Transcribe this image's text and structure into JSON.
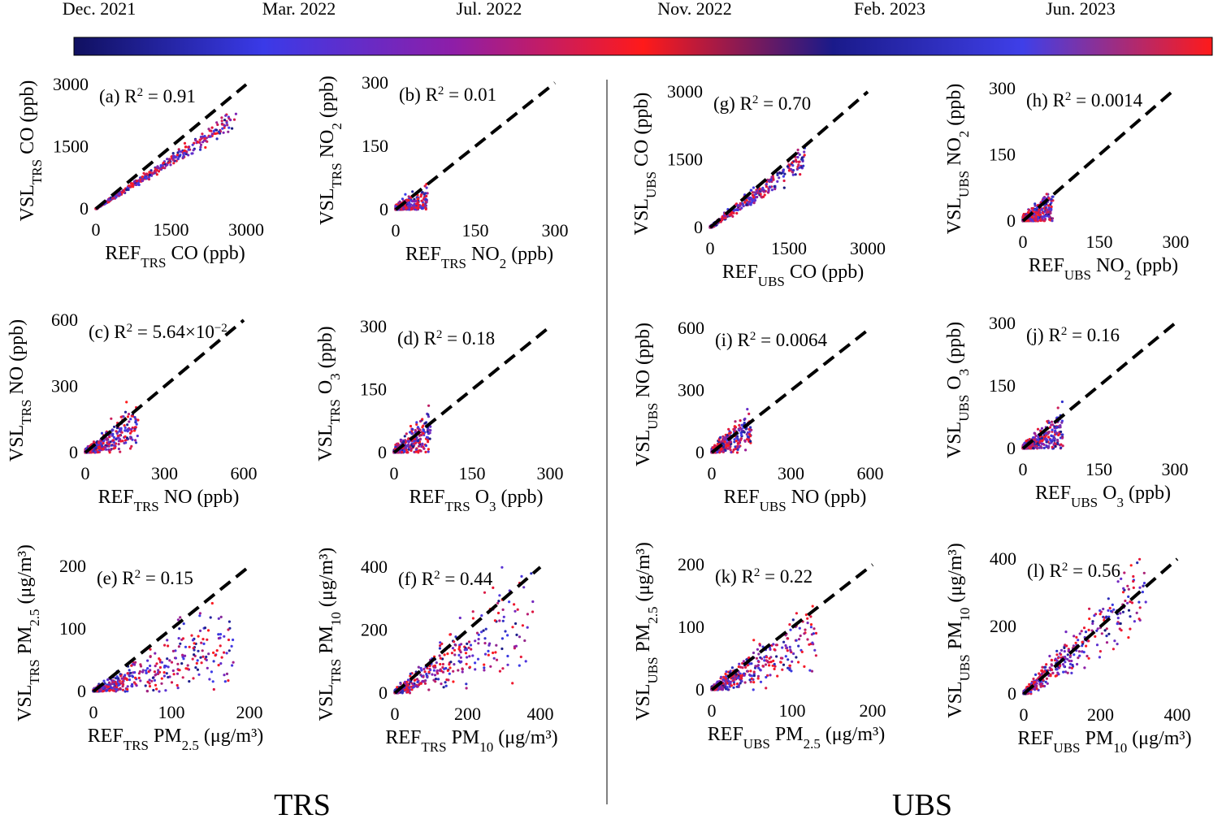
{
  "colorbar": {
    "labels": [
      "Dec. 2021",
      "Mar. 2022",
      "Jul. 2022",
      "Nov. 2022",
      "Feb. 2023",
      "Jun. 2023"
    ],
    "colors": [
      "#101060",
      "#3a3ae8",
      "#8e1ea8",
      "#ff1a1a",
      "#1a1a8a",
      "#3f3fe8",
      "#ff1a1a"
    ]
  },
  "groups": {
    "left": "TRS",
    "right": "UBS"
  },
  "chart_data": [
    {
      "type": "scatter",
      "panel": "a",
      "station": "TRS",
      "species": "CO",
      "units": "(ppb)",
      "annotation": {
        "prefix": "(a) R",
        "value": "= 0.91"
      },
      "xlim": [
        0,
        3000
      ],
      "ylim": [
        0,
        3000
      ],
      "xticks": [
        "0",
        "1500",
        "3000"
      ],
      "yticks": [
        "0",
        "1500",
        "3000"
      ],
      "trend": {
        "slope": 0.78,
        "spread": 0.06,
        "xmax": 2800
      },
      "reference_line": "1:1 dashed"
    },
    {
      "type": "scatter",
      "panel": "b",
      "station": "TRS",
      "species": "NO",
      "species_sub": "2",
      "units": "(ppb)",
      "annotation": {
        "prefix": "(b) R",
        "value": "= 0.01"
      },
      "xlim": [
        0,
        300
      ],
      "ylim": [
        0,
        300
      ],
      "xticks": [
        "0",
        "150",
        "300"
      ],
      "yticks": [
        "0",
        "150",
        "300"
      ],
      "trend": {
        "slope": 0.3,
        "spread": 0.45,
        "xmax": 60
      },
      "reference_line": "1:1 dashed"
    },
    {
      "type": "scatter",
      "panel": "c",
      "station": "TRS",
      "species": "NO",
      "units": "(ppb)",
      "annotation": {
        "prefix": "(c) R",
        "value": "= 5.64×10",
        "exp_extra": "−2"
      },
      "xlim": [
        0,
        600
      ],
      "ylim": [
        0,
        600
      ],
      "xticks": [
        "0",
        "300",
        "600"
      ],
      "yticks": [
        "0",
        "300",
        "600"
      ],
      "trend": {
        "slope": 0.6,
        "spread": 0.35,
        "xmax": 200
      },
      "reference_line": "1:1 dashed"
    },
    {
      "type": "scatter",
      "panel": "d",
      "station": "TRS",
      "species": "O",
      "species_sub": "3",
      "units": "(ppb)",
      "annotation": {
        "prefix": "(d) R",
        "value": "= 0.18"
      },
      "xlim": [
        0,
        300
      ],
      "ylim": [
        0,
        300
      ],
      "xticks": [
        "0",
        "150",
        "300"
      ],
      "yticks": [
        "0",
        "150",
        "300"
      ],
      "trend": {
        "slope": 0.8,
        "spread": 0.45,
        "xmax": 70
      },
      "reference_line": "1:1 dashed"
    },
    {
      "type": "scatter",
      "panel": "e",
      "station": "TRS",
      "species": "PM",
      "species_sub": "2.5",
      "units": "(μg/m³)",
      "annotation": {
        "prefix": "(e) R",
        "value": "= 0.15"
      },
      "xlim": [
        0,
        200
      ],
      "ylim": [
        0,
        200
      ],
      "xticks": [
        "0",
        "100",
        "200"
      ],
      "yticks": [
        "0",
        "100",
        "200"
      ],
      "trend": {
        "slope": 0.45,
        "spread": 0.3,
        "xmax": 180
      },
      "reference_line": "1:1 dashed"
    },
    {
      "type": "scatter",
      "panel": "f",
      "station": "TRS",
      "species": "PM",
      "species_sub": "10",
      "units": "(μg/m³)",
      "annotation": {
        "prefix": "(f) R",
        "value": "= 0.44"
      },
      "xlim": [
        0,
        400
      ],
      "ylim": [
        0,
        400
      ],
      "xticks": [
        "0",
        "200",
        "400"
      ],
      "yticks": [
        "0",
        "200",
        "400"
      ],
      "trend": {
        "slope": 0.7,
        "spread": 0.35,
        "xmax": 380
      },
      "reference_line": "1:1 dashed"
    },
    {
      "type": "scatter",
      "panel": "g",
      "station": "UBS",
      "species": "CO",
      "units": "(ppb)",
      "annotation": {
        "prefix": "(g) R",
        "value": "= 0.70"
      },
      "xlim": [
        0,
        3000
      ],
      "ylim": [
        0,
        3000
      ],
      "xticks": [
        "0",
        "1500",
        "3000"
      ],
      "yticks": [
        "0",
        "1500",
        "3000"
      ],
      "trend": {
        "slope": 0.85,
        "spread": 0.12,
        "xmax": 1800
      },
      "reference_line": "1:1 dashed"
    },
    {
      "type": "scatter",
      "panel": "h",
      "station": "UBS",
      "species": "NO",
      "species_sub": "2",
      "units": "(ppb)",
      "annotation": {
        "prefix": "(h) R",
        "value": "= 0.0014"
      },
      "xlim": [
        0,
        300
      ],
      "ylim": [
        0,
        300
      ],
      "xticks": [
        "0",
        "150",
        "300"
      ],
      "yticks": [
        "0",
        "150",
        "300"
      ],
      "trend": {
        "slope": 0.5,
        "spread": 0.5,
        "xmax": 60
      },
      "reference_line": "1:1 dashed"
    },
    {
      "type": "scatter",
      "panel": "i",
      "station": "UBS",
      "species": "NO",
      "units": "(ppb)",
      "annotation": {
        "prefix": "(i) R",
        "value": "= 0.0064"
      },
      "xlim": [
        0,
        600
      ],
      "ylim": [
        0,
        600
      ],
      "xticks": [
        "0",
        "300",
        "600"
      ],
      "yticks": [
        "0",
        "300",
        "600"
      ],
      "trend": {
        "slope": 0.8,
        "spread": 0.4,
        "xmax": 150
      },
      "reference_line": "1:1 dashed"
    },
    {
      "type": "scatter",
      "panel": "j",
      "station": "UBS",
      "species": "O",
      "species_sub": "3",
      "units": "(ppb)",
      "annotation": {
        "prefix": "(j) R",
        "value": "= 0.16"
      },
      "xlim": [
        0,
        300
      ],
      "ylim": [
        0,
        300
      ],
      "xticks": [
        "0",
        "150",
        "300"
      ],
      "yticks": [
        "0",
        "150",
        "300"
      ],
      "trend": {
        "slope": 0.6,
        "spread": 0.45,
        "xmax": 80
      },
      "reference_line": "1:1 dashed"
    },
    {
      "type": "scatter",
      "panel": "k",
      "station": "UBS",
      "species": "PM",
      "species_sub": "2.5",
      "units": "(μg/m³)",
      "annotation": {
        "prefix": "(k) R",
        "value": "= 0.22"
      },
      "xlim": [
        0,
        200
      ],
      "ylim": [
        0,
        200
      ],
      "xticks": [
        "0",
        "100",
        "200"
      ],
      "yticks": [
        "0",
        "100",
        "200"
      ],
      "trend": {
        "slope": 0.7,
        "spread": 0.35,
        "xmax": 130
      },
      "reference_line": "1:1 dashed"
    },
    {
      "type": "scatter",
      "panel": "l",
      "station": "UBS",
      "species": "PM",
      "species_sub": "10",
      "units": "(μg/m³)",
      "annotation": {
        "prefix": "(l) R",
        "value": "= 0.56"
      },
      "xlim": [
        0,
        400
      ],
      "ylim": [
        0,
        400
      ],
      "xticks": [
        "0",
        "200",
        "400"
      ],
      "yticks": [
        "0",
        "200",
        "400"
      ],
      "trend": {
        "slope": 1.0,
        "spread": 0.3,
        "xmax": 320
      },
      "reference_line": "1:1 dashed"
    }
  ]
}
